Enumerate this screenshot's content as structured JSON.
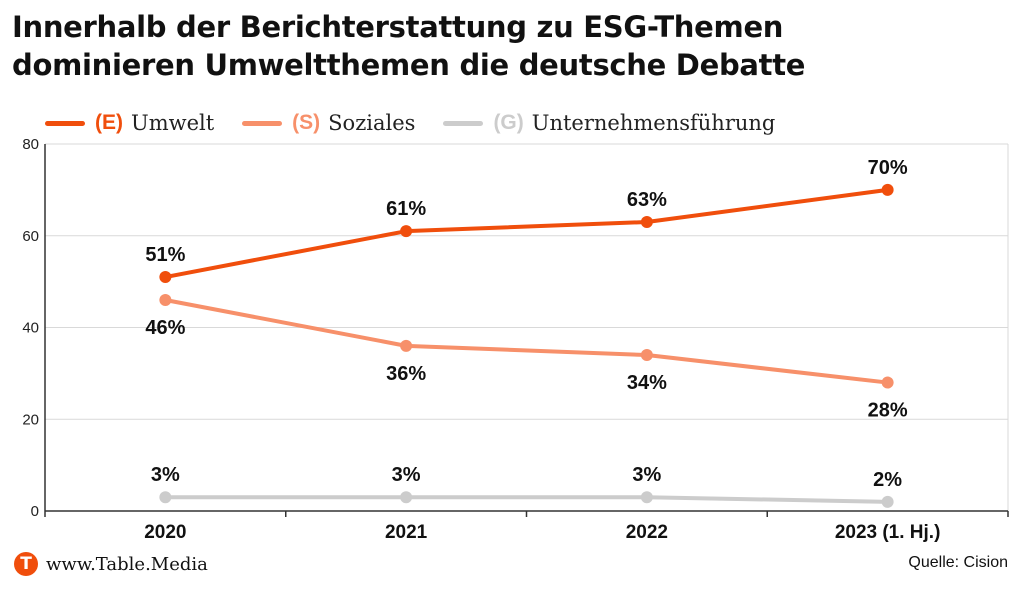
{
  "title_line1": "Innerhalb der Berichterstattung zu ESG-Themen",
  "title_line2": "dominieren Umweltthemen die deutsche Debatte",
  "footer": {
    "logo_letter": "T",
    "site": "www.Table.Media",
    "source": "Quelle: Cision"
  },
  "colors": {
    "environment": "#f04e0c",
    "social": "#f7906a",
    "governance": "#cccccc"
  },
  "chart_data": {
    "type": "line",
    "categories": [
      "2020",
      "2021",
      "2022",
      "2023 (1. Hj.)"
    ],
    "ylim": [
      0,
      80
    ],
    "yticks": [
      0,
      20,
      40,
      60,
      80
    ],
    "grid": true,
    "legend_placement": "top-left",
    "series": [
      {
        "code": "(E)",
        "name": "Umwelt",
        "values": [
          51,
          61,
          63,
          70
        ],
        "labels": [
          "51%",
          "61%",
          "63%",
          "70%"
        ],
        "label_position": "above"
      },
      {
        "code": "(S)",
        "name": "Soziales",
        "values": [
          46,
          36,
          34,
          28
        ],
        "labels": [
          "46%",
          "36%",
          "34%",
          "28%"
        ],
        "label_position": "below"
      },
      {
        "code": "(G)",
        "name": "Unternehmensführung",
        "values": [
          3,
          3,
          3,
          2
        ],
        "labels": [
          "3%",
          "3%",
          "3%",
          "2%"
        ],
        "label_position": "above"
      }
    ]
  }
}
